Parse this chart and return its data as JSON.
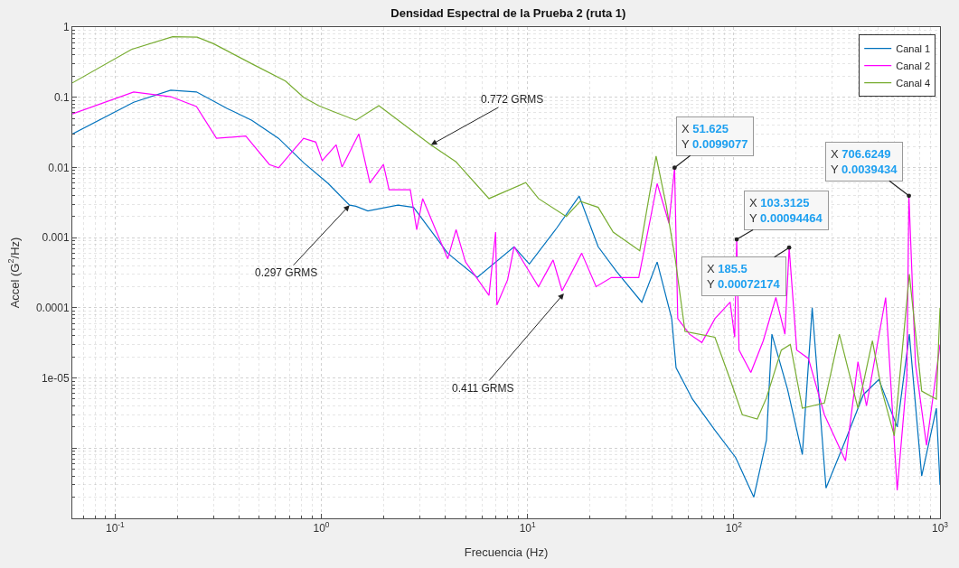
{
  "chart_data": {
    "type": "line",
    "title": "Densidad Espectral de la Prueba 2 (ruta 1)",
    "xlabel": "Frecuencia (Hz)",
    "ylabel": "Accel (G$^{2}$/Hz)",
    "log": "xy",
    "grid": true,
    "legend": "top right",
    "marker": "none",
    "line_style": "solid",
    "xlim": [
      0.062,
      1000
    ],
    "ylim": [
      1e-07,
      1
    ],
    "xticks": [
      {
        "value": 0.1,
        "label": "10$^{-1}$"
      },
      {
        "value": 1,
        "label": "10$^{0}$"
      },
      {
        "value": 10,
        "label": "10$^{1}$"
      },
      {
        "value": 100,
        "label": "10$^{2}$"
      },
      {
        "value": 1000,
        "label": "10$^{3}$"
      }
    ],
    "yticks": [
      1,
      0.1,
      0.01,
      0.001,
      0.0001,
      {
        "value": 1e-05,
        "label": "1e-05"
      },
      {
        "value": 1e-06,
        "label": null
      },
      {
        "value": 1e-07,
        "label": null
      }
    ],
    "series": [
      {
        "name": "Canal 1",
        "color": "#0072bd",
        "x": [
          0.062,
          0.123,
          0.186,
          0.248,
          0.35,
          0.46,
          0.62,
          0.82,
          1.08,
          1.37,
          1.47,
          1.68,
          2.35,
          2.8,
          4.1,
          5.7,
          8.6,
          10.2,
          13.8,
          17.8,
          22,
          27,
          35.8,
          42.5,
          50,
          52.5,
          63,
          81,
          102,
          125,
          144,
          153,
          182,
          215,
          240,
          280,
          348,
          425,
          505,
          620,
          710,
          815,
          960,
          1000
        ],
        "values": [
          0.03,
          0.085,
          0.126,
          0.119,
          0.069,
          0.047,
          0.026,
          0.0117,
          0.0059,
          0.0029,
          0.0028,
          0.0024,
          0.0029,
          0.0027,
          0.0006,
          0.00027,
          0.00074,
          0.00042,
          0.00135,
          0.0039,
          0.00074,
          0.00033,
          0.00012,
          0.00045,
          7e-05,
          1.4e-05,
          5e-06,
          1.8e-06,
          7.4e-07,
          2e-07,
          1.3e-06,
          4.2e-05,
          7e-06,
          8.1e-07,
          0.0001,
          2.7e-07,
          1.3e-06,
          5.8e-06,
          9.5e-06,
          2e-06,
          4.2e-05,
          4e-07,
          3.7e-06,
          3e-07
        ]
      },
      {
        "name": "Canal 2",
        "color": "#ff00ff",
        "x": [
          0.062,
          0.123,
          0.186,
          0.248,
          0.31,
          0.43,
          0.56,
          0.62,
          0.82,
          0.94,
          1.01,
          1.18,
          1.26,
          1.52,
          1.72,
          2.0,
          2.13,
          2.7,
          2.9,
          3.1,
          4.1,
          4.5,
          5.0,
          6.5,
          7.0,
          7.1,
          8.0,
          8.6,
          11.3,
          13.3,
          14.7,
          18.3,
          21.5,
          25.5,
          34.6,
          39.6,
          42.5,
          48.5,
          51.625,
          53.5,
          61,
          70,
          81,
          96,
          101,
          103.3125,
          106,
          121,
          139,
          160,
          177,
          185.5,
          202,
          230,
          275,
          348,
          400,
          440,
          545,
          620,
          690,
          706.6249,
          760,
          860,
          1000
        ],
        "values": [
          0.058,
          0.119,
          0.102,
          0.074,
          0.026,
          0.028,
          0.011,
          0.0099,
          0.026,
          0.023,
          0.0125,
          0.021,
          0.0101,
          0.03,
          0.006,
          0.011,
          0.0048,
          0.0048,
          0.0013,
          0.0036,
          0.0005,
          0.0013,
          0.00045,
          0.00015,
          0.0012,
          0.00011,
          0.00025,
          0.00074,
          0.0002,
          0.00048,
          0.000175,
          0.0006,
          0.0002,
          0.00027,
          0.00027,
          0.002,
          0.0059,
          0.0016,
          0.0099077,
          7e-05,
          4.2e-05,
          3.2e-05,
          7e-05,
          0.00012,
          3.8e-05,
          0.00094464,
          2.5e-05,
          1.2e-05,
          3.4e-05,
          0.00014,
          4.2e-05,
          0.00072174,
          2.5e-05,
          1.9e-05,
          3e-06,
          6.6e-07,
          1.7e-05,
          4e-06,
          0.00014,
          2.5e-07,
          1e-05,
          0.0039434,
          1.6e-05,
          1.1e-06,
          3e-05
        ]
      },
      {
        "name": "Canal 4",
        "color": "#77ac30",
        "x": [
          0.062,
          0.12,
          0.19,
          0.25,
          0.3,
          0.46,
          0.67,
          0.82,
          0.97,
          1.12,
          1.47,
          1.9,
          3.4,
          4.5,
          6.5,
          9.8,
          11.3,
          15.4,
          18,
          22,
          26,
          35,
          42,
          47,
          52,
          58,
          81,
          96,
          110,
          130,
          144,
          170,
          188,
          215,
          275,
          325,
          400,
          470,
          520,
          600,
          710,
          815,
          960,
          1000
        ],
        "values": [
          0.16,
          0.48,
          0.73,
          0.72,
          0.58,
          0.3,
          0.17,
          0.1,
          0.076,
          0.064,
          0.047,
          0.076,
          0.021,
          0.012,
          0.0036,
          0.0061,
          0.0036,
          0.002,
          0.0033,
          0.0027,
          0.0012,
          0.00065,
          0.0145,
          0.0029,
          0.0005,
          4.6e-05,
          3.8e-05,
          9.5e-06,
          3e-06,
          2.6e-06,
          5.2e-06,
          2.5e-05,
          3e-05,
          3.7e-06,
          4.4e-06,
          4.2e-05,
          3.7e-06,
          3.4e-05,
          7e-06,
          1.5e-06,
          0.0003,
          6.5e-06,
          5e-06,
          0.0001
        ]
      }
    ],
    "annotations": [
      {
        "text": "0.772 GRMS",
        "x": 3.4,
        "y": 0.021
      },
      {
        "text": "0.297 GRMS",
        "x": 1.37,
        "y": 0.0029
      },
      {
        "text": "0.411 GRMS",
        "x": 15,
        "y": 0.00016
      },
      {
        "text": "X 51.625\nY 0.0099077",
        "x": 51.625,
        "y": 0.0099077
      },
      {
        "text": "X 103.3125\nY 0.00094464",
        "x": 103.3125,
        "y": 0.00094464
      },
      {
        "text": "X 185.5\nY 0.00072174",
        "x": 185.5,
        "y": 0.00072174
      },
      {
        "text": "X 706.6249\nY 0.0039434",
        "x": 706.6249,
        "y": 0.0039434
      }
    ]
  }
}
